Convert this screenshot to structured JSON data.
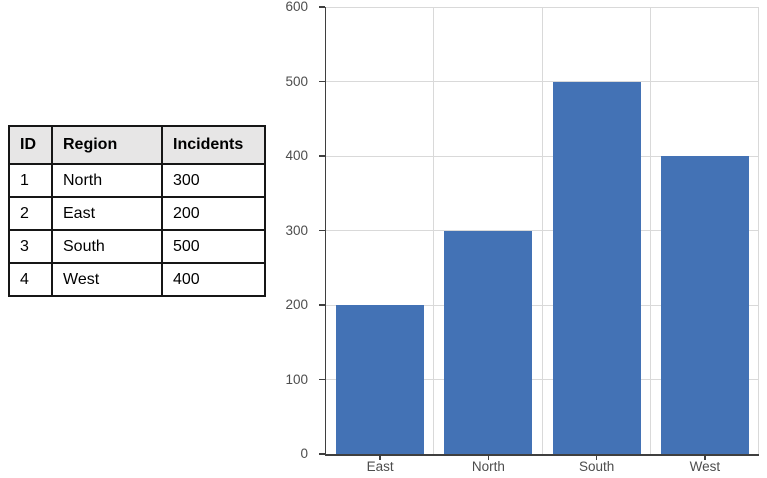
{
  "table": {
    "headers": [
      "ID",
      "Region",
      "Incidents"
    ],
    "rows": [
      [
        "1",
        "North",
        "300"
      ],
      [
        "2",
        "East",
        "200"
      ],
      [
        "3",
        "South",
        "500"
      ],
      [
        "4",
        "West",
        "400"
      ]
    ],
    "header_bg": "#e7e6e6",
    "border_color": "#161616"
  },
  "chart_data": {
    "type": "bar",
    "title": "",
    "xlabel": "",
    "ylabel": "",
    "categories": [
      "East",
      "North",
      "South",
      "West"
    ],
    "values": [
      200,
      300,
      500,
      400
    ],
    "ylim": [
      0,
      600
    ],
    "ytick_step": 100,
    "ytick_labels": [
      "0",
      "100",
      "200",
      "300",
      "400",
      "500",
      "600"
    ],
    "grid": "on",
    "legend": "none",
    "bar_color": "#4372b5",
    "gridline_color": "#d9d9d9",
    "axis_color": "#3f3f3f",
    "label_color": "#4d4d4d"
  }
}
